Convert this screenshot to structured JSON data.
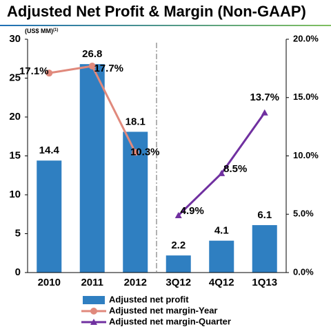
{
  "chart_data": {
    "type": "bar",
    "title": "Adjusted Net Profit & Margin (Non-GAAP)",
    "y_label": "(US$ MM)",
    "y_label_note": "(1)",
    "categories": [
      "2010",
      "2011",
      "2012",
      "3Q12",
      "4Q12",
      "1Q13"
    ],
    "series": [
      {
        "name": "Adjusted net profit",
        "type": "bar",
        "color": "#2f7fc1",
        "values": [
          14.4,
          26.8,
          18.1,
          2.2,
          4.1,
          6.1
        ]
      },
      {
        "name": "Adjusted net margin-Year",
        "type": "line",
        "axis": "y2",
        "marker": "circle",
        "color": "#e0897c",
        "values": [
          17.1,
          17.7,
          10.3,
          null,
          null,
          null
        ],
        "value_labels": [
          "17.1%",
          "17.7%",
          "10.3%",
          null,
          null,
          null
        ]
      },
      {
        "name": "Adjusted net margin-Quarter",
        "type": "line",
        "axis": "y2",
        "marker": "triangle",
        "color": "#7030a0",
        "values": [
          null,
          null,
          null,
          4.9,
          8.5,
          13.7
        ],
        "value_labels": [
          null,
          null,
          null,
          "4.9%",
          "8.5%",
          "13.7%"
        ]
      }
    ],
    "ylim": [
      0,
      30
    ],
    "yticks": [
      0,
      5,
      10,
      15,
      20,
      25,
      30
    ],
    "y2lim": [
      0,
      20
    ],
    "y2ticks": [
      {
        "value": 0,
        "label": "0.0%"
      },
      {
        "value": 5,
        "label": "5.0%"
      },
      {
        "value": 10,
        "label": "10.0%"
      },
      {
        "value": 15,
        "label": "15.0%"
      },
      {
        "value": 20,
        "label": "20.0%"
      }
    ]
  }
}
